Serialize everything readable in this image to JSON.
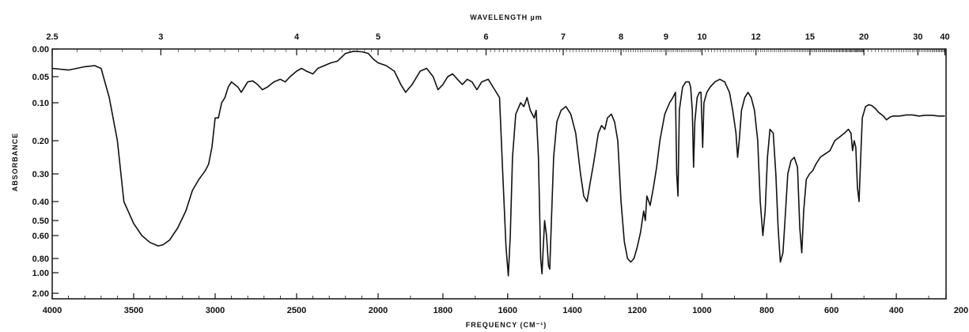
{
  "chart_data": {
    "type": "line",
    "title": "",
    "xlabel": "FREQUENCY (CM⁻¹)",
    "x2label": "WAVELENGTH µm",
    "ylabel": "ABSORBANCE",
    "x_ticks": [
      {
        "value": 4000,
        "label": "4000"
      },
      {
        "value": 3500,
        "label": "3500"
      },
      {
        "value": 3000,
        "label": "3000"
      },
      {
        "value": 2500,
        "label": "2500"
      },
      {
        "value": 2000,
        "label": "2000"
      },
      {
        "value": 1800,
        "label": "1800"
      },
      {
        "value": 1600,
        "label": "1600"
      },
      {
        "value": 1400,
        "label": "1400"
      },
      {
        "value": 1200,
        "label": "1200"
      },
      {
        "value": 1000,
        "label": "1000"
      },
      {
        "value": 800,
        "label": "800"
      },
      {
        "value": 600,
        "label": "600"
      },
      {
        "value": 400,
        "label": "400"
      },
      {
        "value": 200,
        "label": "200"
      }
    ],
    "x2_ticks": [
      {
        "value": 2.5,
        "label": "2.5"
      },
      {
        "value": 3,
        "label": "3"
      },
      {
        "value": 4,
        "label": "4"
      },
      {
        "value": 5,
        "label": "5"
      },
      {
        "value": 6,
        "label": "6"
      },
      {
        "value": 7,
        "label": "7"
      },
      {
        "value": 8,
        "label": "8"
      },
      {
        "value": 9,
        "label": "9"
      },
      {
        "value": 10,
        "label": "10"
      },
      {
        "value": 12,
        "label": "12"
      },
      {
        "value": 15,
        "label": "15"
      },
      {
        "value": 20,
        "label": "20"
      },
      {
        "value": 30,
        "label": "30"
      },
      {
        "value": 40,
        "label": "40"
      }
    ],
    "y_ticks": [
      {
        "value": 0.0,
        "label": "0.00"
      },
      {
        "value": 0.05,
        "label": "0.05"
      },
      {
        "value": 0.1,
        "label": "0.10"
      },
      {
        "value": 0.2,
        "label": "0.20"
      },
      {
        "value": 0.3,
        "label": "0.30"
      },
      {
        "value": 0.4,
        "label": "0.40"
      },
      {
        "value": 0.5,
        "label": "0.50"
      },
      {
        "value": 0.6,
        "label": "0.60"
      },
      {
        "value": 0.8,
        "label": "0.80"
      },
      {
        "value": 1.0,
        "label": "1.00"
      },
      {
        "value": 2.0,
        "label": "2.00"
      }
    ],
    "xlim": [
      4000,
      200
    ],
    "ylim": [
      0.0,
      2.0
    ],
    "grid": false,
    "series": [
      {
        "values": [
          [
            4000,
            0.035
          ],
          [
            3900,
            0.038
          ],
          [
            3800,
            0.032
          ],
          [
            3740,
            0.03
          ],
          [
            3700,
            0.035
          ],
          [
            3650,
            0.09
          ],
          [
            3600,
            0.2
          ],
          [
            3560,
            0.4
          ],
          [
            3500,
            0.52
          ],
          [
            3450,
            0.6
          ],
          [
            3400,
            0.66
          ],
          [
            3350,
            0.69
          ],
          [
            3320,
            0.68
          ],
          [
            3280,
            0.64
          ],
          [
            3230,
            0.55
          ],
          [
            3180,
            0.45
          ],
          [
            3140,
            0.36
          ],
          [
            3100,
            0.32
          ],
          [
            3060,
            0.29
          ],
          [
            3040,
            0.27
          ],
          [
            3020,
            0.22
          ],
          [
            3000,
            0.14
          ],
          [
            2980,
            0.14
          ],
          [
            2960,
            0.1
          ],
          [
            2940,
            0.09
          ],
          [
            2920,
            0.07
          ],
          [
            2900,
            0.06
          ],
          [
            2880,
            0.065
          ],
          [
            2860,
            0.07
          ],
          [
            2840,
            0.08
          ],
          [
            2820,
            0.07
          ],
          [
            2800,
            0.06
          ],
          [
            2770,
            0.058
          ],
          [
            2740,
            0.065
          ],
          [
            2710,
            0.075
          ],
          [
            2680,
            0.07
          ],
          [
            2640,
            0.06
          ],
          [
            2600,
            0.055
          ],
          [
            2570,
            0.06
          ],
          [
            2540,
            0.05
          ],
          [
            2500,
            0.04
          ],
          [
            2470,
            0.035
          ],
          [
            2440,
            0.04
          ],
          [
            2400,
            0.045
          ],
          [
            2370,
            0.035
          ],
          [
            2330,
            0.03
          ],
          [
            2290,
            0.025
          ],
          [
            2250,
            0.022
          ],
          [
            2200,
            0.008
          ],
          [
            2150,
            0.004
          ],
          [
            2100,
            0.005
          ],
          [
            2060,
            0.008
          ],
          [
            2030,
            0.018
          ],
          [
            2000,
            0.025
          ],
          [
            1975,
            0.03
          ],
          [
            1950,
            0.04
          ],
          [
            1930,
            0.065
          ],
          [
            1915,
            0.08
          ],
          [
            1895,
            0.065
          ],
          [
            1870,
            0.04
          ],
          [
            1850,
            0.035
          ],
          [
            1830,
            0.05
          ],
          [
            1815,
            0.075
          ],
          [
            1800,
            0.065
          ],
          [
            1785,
            0.05
          ],
          [
            1770,
            0.045
          ],
          [
            1755,
            0.055
          ],
          [
            1740,
            0.065
          ],
          [
            1725,
            0.055
          ],
          [
            1710,
            0.06
          ],
          [
            1695,
            0.075
          ],
          [
            1680,
            0.06
          ],
          [
            1660,
            0.055
          ],
          [
            1640,
            0.075
          ],
          [
            1625,
            0.09
          ],
          [
            1615,
            0.3
          ],
          [
            1605,
            0.7
          ],
          [
            1598,
            1.15
          ],
          [
            1592,
            0.6
          ],
          [
            1585,
            0.25
          ],
          [
            1575,
            0.13
          ],
          [
            1560,
            0.1
          ],
          [
            1550,
            0.11
          ],
          [
            1540,
            0.09
          ],
          [
            1530,
            0.12
          ],
          [
            1518,
            0.14
          ],
          [
            1512,
            0.12
          ],
          [
            1505,
            0.25
          ],
          [
            1498,
            0.8
          ],
          [
            1494,
            1.05
          ],
          [
            1490,
            0.7
          ],
          [
            1486,
            0.5
          ],
          [
            1480,
            0.6
          ],
          [
            1474,
            0.9
          ],
          [
            1470,
            0.95
          ],
          [
            1465,
            0.5
          ],
          [
            1458,
            0.25
          ],
          [
            1448,
            0.15
          ],
          [
            1435,
            0.12
          ],
          [
            1420,
            0.11
          ],
          [
            1405,
            0.13
          ],
          [
            1390,
            0.18
          ],
          [
            1375,
            0.3
          ],
          [
            1365,
            0.38
          ],
          [
            1355,
            0.4
          ],
          [
            1345,
            0.33
          ],
          [
            1335,
            0.27
          ],
          [
            1320,
            0.18
          ],
          [
            1310,
            0.16
          ],
          [
            1300,
            0.17
          ],
          [
            1292,
            0.14
          ],
          [
            1280,
            0.13
          ],
          [
            1270,
            0.15
          ],
          [
            1260,
            0.2
          ],
          [
            1250,
            0.4
          ],
          [
            1240,
            0.65
          ],
          [
            1230,
            0.8
          ],
          [
            1220,
            0.85
          ],
          [
            1210,
            0.8
          ],
          [
            1200,
            0.7
          ],
          [
            1190,
            0.58
          ],
          [
            1180,
            0.45
          ],
          [
            1175,
            0.5
          ],
          [
            1170,
            0.38
          ],
          [
            1160,
            0.42
          ],
          [
            1150,
            0.35
          ],
          [
            1140,
            0.28
          ],
          [
            1130,
            0.2
          ],
          [
            1115,
            0.13
          ],
          [
            1100,
            0.1
          ],
          [
            1090,
            0.09
          ],
          [
            1082,
            0.08
          ],
          [
            1078,
            0.3
          ],
          [
            1074,
            0.38
          ],
          [
            1070,
            0.12
          ],
          [
            1060,
            0.07
          ],
          [
            1050,
            0.06
          ],
          [
            1040,
            0.06
          ],
          [
            1035,
            0.07
          ],
          [
            1030,
            0.12
          ],
          [
            1026,
            0.28
          ],
          [
            1022,
            0.15
          ],
          [
            1015,
            0.09
          ],
          [
            1008,
            0.08
          ],
          [
            1003,
            0.08
          ],
          [
            998,
            0.22
          ],
          [
            994,
            0.1
          ],
          [
            985,
            0.08
          ],
          [
            975,
            0.07
          ],
          [
            960,
            0.06
          ],
          [
            945,
            0.055
          ],
          [
            930,
            0.06
          ],
          [
            915,
            0.08
          ],
          [
            905,
            0.12
          ],
          [
            895,
            0.18
          ],
          [
            890,
            0.25
          ],
          [
            885,
            0.2
          ],
          [
            878,
            0.12
          ],
          [
            868,
            0.09
          ],
          [
            858,
            0.08
          ],
          [
            848,
            0.09
          ],
          [
            838,
            0.12
          ],
          [
            828,
            0.2
          ],
          [
            820,
            0.4
          ],
          [
            812,
            0.6
          ],
          [
            805,
            0.45
          ],
          [
            798,
            0.25
          ],
          [
            790,
            0.17
          ],
          [
            780,
            0.18
          ],
          [
            772,
            0.3
          ],
          [
            765,
            0.55
          ],
          [
            758,
            0.85
          ],
          [
            750,
            0.75
          ],
          [
            742,
            0.45
          ],
          [
            735,
            0.3
          ],
          [
            725,
            0.26
          ],
          [
            715,
            0.25
          ],
          [
            705,
            0.28
          ],
          [
            698,
            0.55
          ],
          [
            692,
            0.75
          ],
          [
            686,
            0.45
          ],
          [
            678,
            0.32
          ],
          [
            668,
            0.3
          ],
          [
            658,
            0.29
          ],
          [
            648,
            0.27
          ],
          [
            635,
            0.25
          ],
          [
            620,
            0.24
          ],
          [
            605,
            0.23
          ],
          [
            590,
            0.2
          ],
          [
            575,
            0.19
          ],
          [
            560,
            0.18
          ],
          [
            548,
            0.17
          ],
          [
            540,
            0.18
          ],
          [
            535,
            0.23
          ],
          [
            530,
            0.2
          ],
          [
            525,
            0.22
          ],
          [
            520,
            0.35
          ],
          [
            515,
            0.4
          ],
          [
            510,
            0.25
          ],
          [
            505,
            0.14
          ],
          [
            495,
            0.11
          ],
          [
            485,
            0.105
          ],
          [
            475,
            0.108
          ],
          [
            465,
            0.115
          ],
          [
            455,
            0.125
          ],
          [
            440,
            0.135
          ],
          [
            430,
            0.145
          ],
          [
            420,
            0.138
          ],
          [
            410,
            0.135
          ],
          [
            390,
            0.135
          ],
          [
            370,
            0.132
          ],
          [
            350,
            0.132
          ],
          [
            330,
            0.135
          ],
          [
            310,
            0.133
          ],
          [
            290,
            0.133
          ],
          [
            270,
            0.135
          ],
          [
            250,
            0.135
          ]
        ]
      }
    ]
  }
}
